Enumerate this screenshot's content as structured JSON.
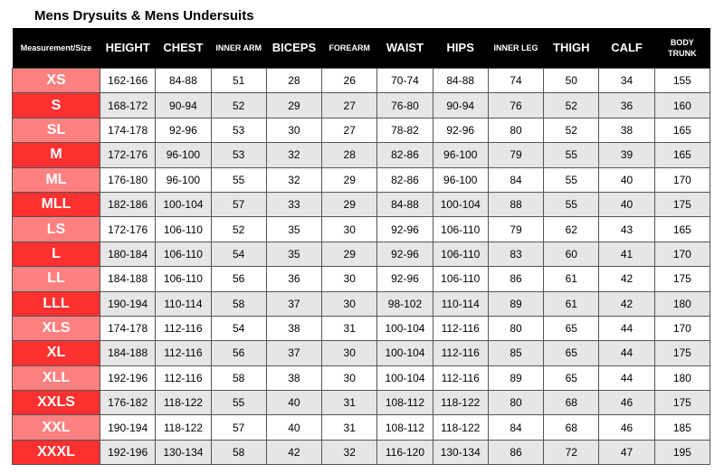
{
  "title": "Mens Drysuits & Mens Undersuits",
  "colors": {
    "header_bg": "#000000",
    "size_light": "#ff8080",
    "size_dark": "#ff3030",
    "row_alt": "#e6e6e6"
  },
  "columns": [
    {
      "label": "Measurement/Size",
      "small": true
    },
    {
      "label": "HEIGHT",
      "small": false
    },
    {
      "label": "CHEST",
      "small": false
    },
    {
      "label": "INNER ARM",
      "small": true
    },
    {
      "label": "BICEPS",
      "small": false
    },
    {
      "label": "FOREARM",
      "small": true
    },
    {
      "label": "WAIST",
      "small": false
    },
    {
      "label": "HIPS",
      "small": false
    },
    {
      "label": "INNER LEG",
      "small": true
    },
    {
      "label": "THIGH",
      "small": false
    },
    {
      "label": "CALF",
      "small": false
    },
    {
      "label": "BODY TRUNK",
      "small": true
    }
  ],
  "rows": [
    [
      "XS",
      "162-166",
      "84-88",
      "51",
      "28",
      "26",
      "70-74",
      "84-88",
      "74",
      "50",
      "34",
      "155"
    ],
    [
      "S",
      "168-172",
      "90-94",
      "52",
      "29",
      "27",
      "76-80",
      "90-94",
      "76",
      "52",
      "36",
      "160"
    ],
    [
      "SL",
      "174-178",
      "92-96",
      "53",
      "30",
      "27",
      "78-82",
      "92-96",
      "80",
      "52",
      "38",
      "165"
    ],
    [
      "M",
      "172-176",
      "96-100",
      "53",
      "32",
      "28",
      "82-86",
      "96-100",
      "79",
      "55",
      "39",
      "165"
    ],
    [
      "ML",
      "176-180",
      "96-100",
      "55",
      "32",
      "29",
      "82-86",
      "96-100",
      "84",
      "55",
      "40",
      "170"
    ],
    [
      "MLL",
      "182-186",
      "100-104",
      "57",
      "33",
      "29",
      "84-88",
      "100-104",
      "88",
      "55",
      "40",
      "175"
    ],
    [
      "LS",
      "172-176",
      "106-110",
      "52",
      "35",
      "30",
      "92-96",
      "106-110",
      "79",
      "62",
      "43",
      "165"
    ],
    [
      "L",
      "180-184",
      "106-110",
      "54",
      "35",
      "29",
      "92-96",
      "106-110",
      "83",
      "60",
      "41",
      "170"
    ],
    [
      "LL",
      "184-188",
      "106-110",
      "56",
      "36",
      "30",
      "92-96",
      "106-110",
      "86",
      "61",
      "42",
      "175"
    ],
    [
      "LLL",
      "190-194",
      "110-114",
      "58",
      "37",
      "30",
      "98-102",
      "110-114",
      "89",
      "61",
      "42",
      "180"
    ],
    [
      "XLS",
      "174-178",
      "112-116",
      "54",
      "38",
      "31",
      "100-104",
      "112-116",
      "80",
      "65",
      "44",
      "170"
    ],
    [
      "XL",
      "184-188",
      "112-116",
      "56",
      "37",
      "30",
      "100-104",
      "112-116",
      "85",
      "65",
      "44",
      "175"
    ],
    [
      "XLL",
      "192-196",
      "112-116",
      "58",
      "38",
      "30",
      "100-104",
      "112-116",
      "89",
      "65",
      "44",
      "180"
    ],
    [
      "XXLS",
      "176-182",
      "118-122",
      "55",
      "40",
      "31",
      "108-112",
      "118-122",
      "80",
      "68",
      "46",
      "175"
    ],
    [
      "XXL",
      "190-194",
      "118-122",
      "57",
      "40",
      "31",
      "108-112",
      "118-122",
      "84",
      "68",
      "46",
      "185"
    ],
    [
      "XXXL",
      "192-196",
      "130-134",
      "58",
      "42",
      "32",
      "116-120",
      "130-134",
      "86",
      "72",
      "47",
      "195"
    ]
  ]
}
